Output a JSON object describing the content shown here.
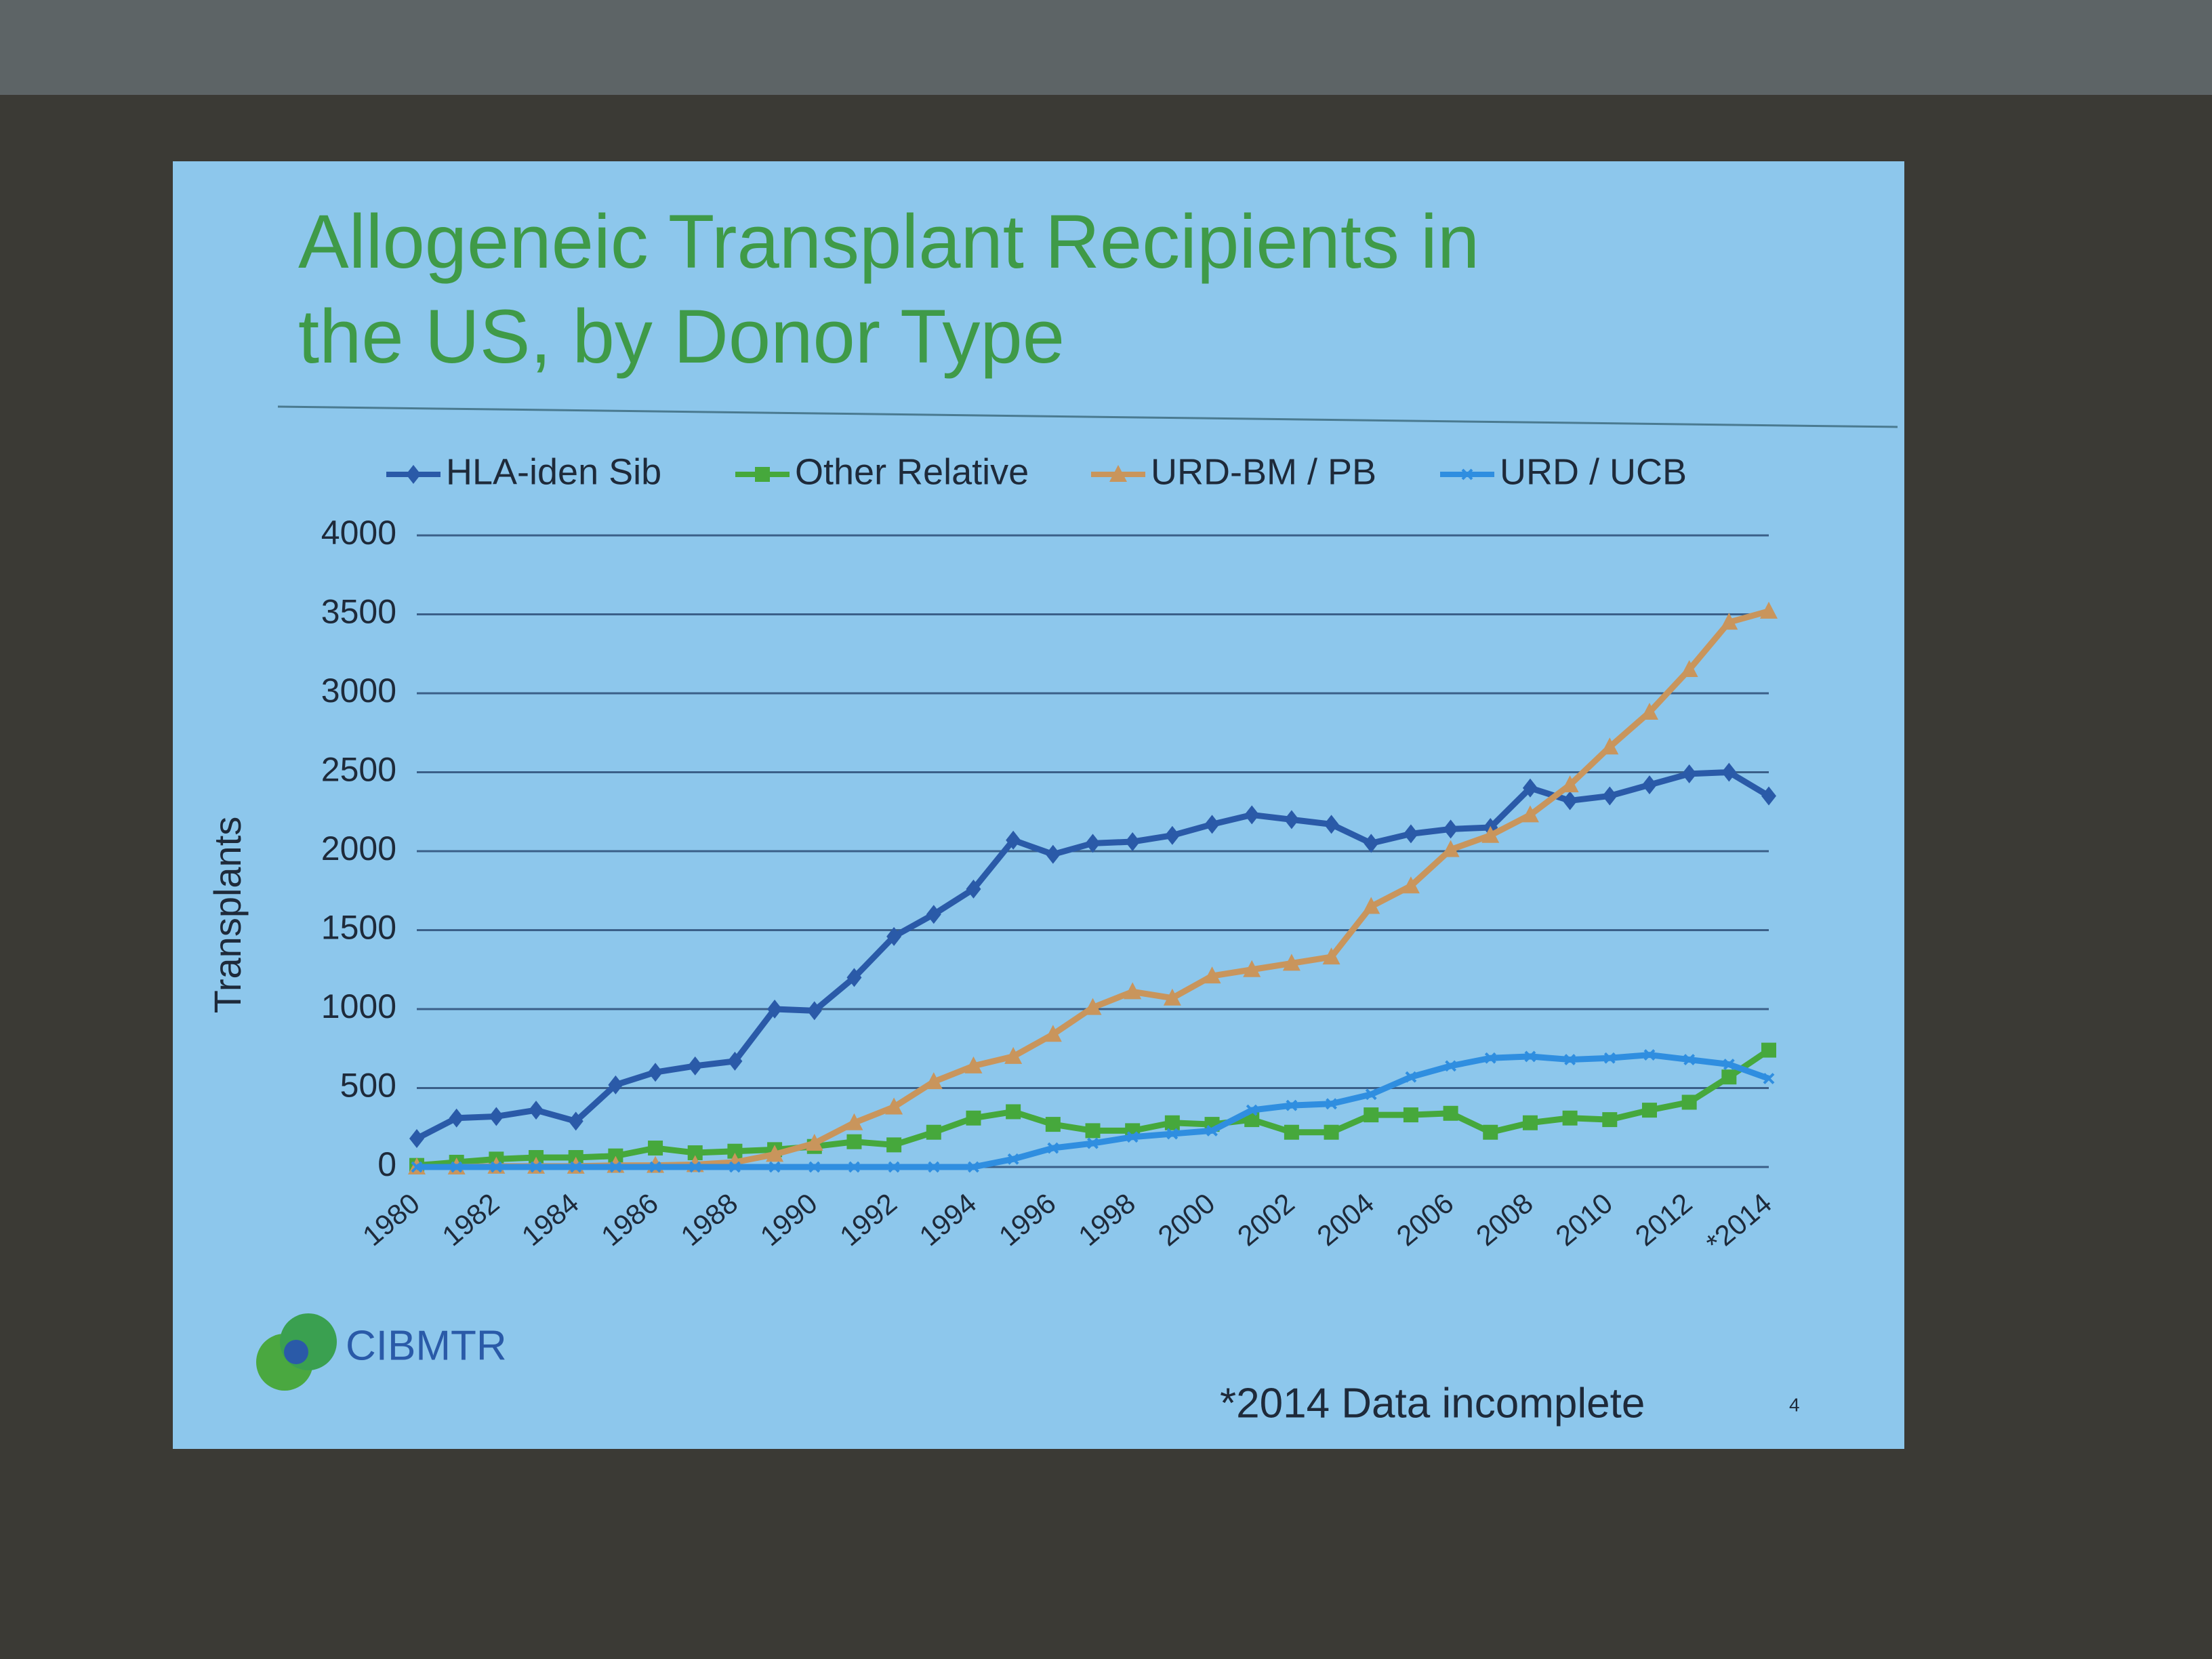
{
  "chart_data": {
    "type": "line",
    "title": "Allogeneic Transplant Recipients in the US, by Donor Type",
    "y_label": "Transplants",
    "footnote": "*2014 Data incomplete",
    "slide_number": "4",
    "logo_text": "CIBMTR",
    "categories": [
      "1980",
      null,
      "1982",
      null,
      "1984",
      null,
      "1986",
      null,
      "1988",
      null,
      "1990",
      null,
      "1992",
      null,
      "1994",
      null,
      "1996",
      null,
      "1998",
      null,
      "2000",
      null,
      "2002",
      null,
      "2004",
      null,
      "2006",
      null,
      "2008",
      null,
      "2010",
      null,
      "2012",
      null,
      "*2014"
    ],
    "series": [
      {
        "name": "HLA-iden Sib",
        "color": "#2a5aa8",
        "marker": "diamond",
        "values": [
          180,
          310,
          320,
          360,
          290,
          520,
          600,
          640,
          670,
          1000,
          990,
          1200,
          1460,
          1600,
          1760,
          2070,
          1980,
          2050,
          2060,
          2100,
          2170,
          2230,
          2200,
          2170,
          2050,
          2110,
          2140,
          2150,
          2400,
          2320,
          2350,
          2420,
          2490,
          2500,
          2350
        ]
      },
      {
        "name": "Other Relative",
        "color": "#46a83c",
        "marker": "square",
        "values": [
          10,
          30,
          50,
          60,
          60,
          70,
          120,
          90,
          100,
          110,
          130,
          160,
          140,
          220,
          310,
          350,
          270,
          230,
          230,
          280,
          270,
          300,
          220,
          220,
          330,
          330,
          340,
          220,
          280,
          310,
          300,
          360,
          410,
          570,
          740
        ]
      },
      {
        "name": "URD-BM / PB",
        "color": "#c9955c",
        "marker": "triangle",
        "values": [
          0,
          0,
          5,
          5,
          5,
          10,
          10,
          15,
          30,
          80,
          150,
          280,
          380,
          540,
          640,
          700,
          840,
          1010,
          1110,
          1070,
          1210,
          1250,
          1290,
          1330,
          1650,
          1780,
          2010,
          2100,
          2230,
          2420,
          2660,
          2880,
          3150,
          3450,
          3520
        ]
      },
      {
        "name": "URD / UCB",
        "color": "#2f8ee0",
        "marker": "cross",
        "values": [
          0,
          0,
          0,
          0,
          0,
          0,
          0,
          0,
          0,
          0,
          0,
          0,
          0,
          0,
          0,
          50,
          120,
          150,
          190,
          210,
          230,
          360,
          390,
          400,
          460,
          570,
          640,
          690,
          700,
          680,
          690,
          710,
          680,
          650,
          560
        ]
      }
    ],
    "ylim": [
      0,
      4000
    ],
    "yticks": [
      0,
      500,
      1000,
      1500,
      2000,
      2500,
      3000,
      3500,
      4000
    ],
    "grid": true
  }
}
